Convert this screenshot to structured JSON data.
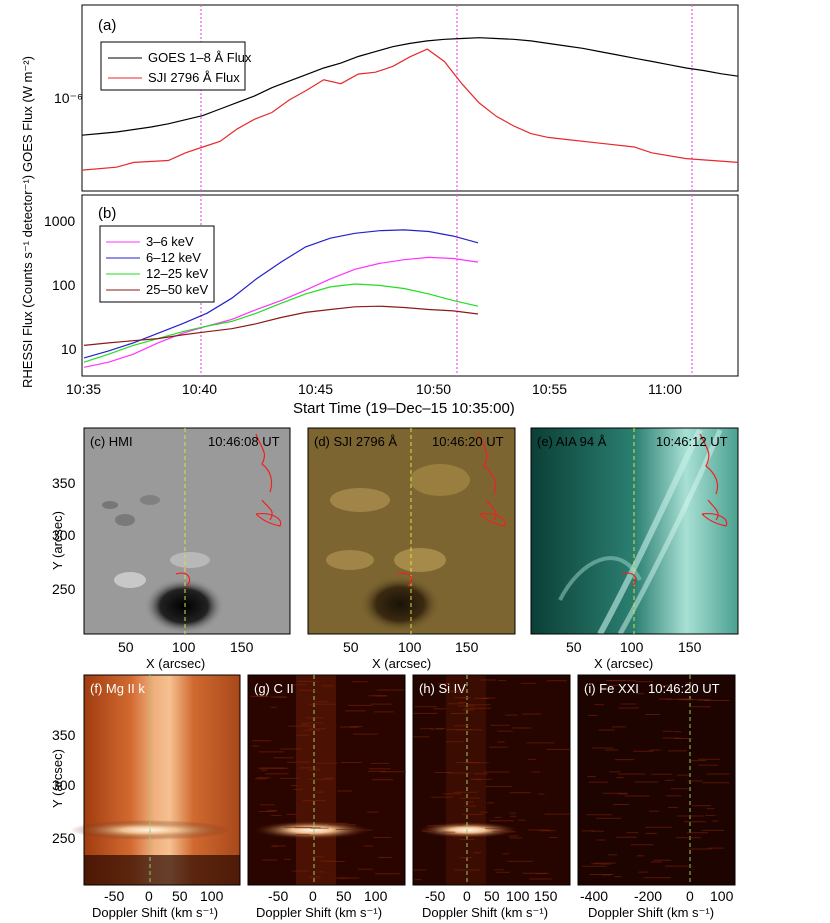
{
  "colors": {
    "goes": "#000000",
    "sji": "#e8282a",
    "ch36": "#ff33ff",
    "ch612": "#2222cc",
    "ch1225": "#22dd22",
    "ch2550": "#8b1a1a",
    "marker": "#ee55ee",
    "contour": "#ee2222"
  },
  "chart_data": [
    {
      "type": "line",
      "panel": "(a)",
      "ylabel": "GOES Flux (W m⁻²)",
      "ytick": "10⁻⁶",
      "yscale": "log",
      "series": [
        {
          "name": "GOES 1–8 Å Flux",
          "x": [
            0,
            1,
            2,
            3,
            4,
            5,
            6,
            7,
            8,
            9,
            10,
            11,
            12,
            13,
            14,
            15,
            16,
            17,
            18,
            19,
            20,
            21,
            22,
            23,
            24,
            25,
            26,
            27,
            28,
            29,
            30,
            31,
            32,
            33,
            34,
            35,
            36,
            37,
            38
          ],
          "y": [
            0.18,
            0.2,
            0.22,
            0.25,
            0.28,
            0.32,
            0.37,
            0.42,
            0.5,
            0.58,
            0.66,
            0.76,
            0.84,
            0.92,
            1.0,
            1.06,
            1.14,
            1.2,
            1.26,
            1.3,
            1.33,
            1.35,
            1.36,
            1.37,
            1.36,
            1.35,
            1.33,
            1.3,
            1.27,
            1.24,
            1.2,
            1.16,
            1.12,
            1.08,
            1.04,
            1.0,
            0.97,
            0.93,
            0.9
          ]
        },
        {
          "name": "SJI 2796 Å Flux",
          "x": [
            0,
            2,
            3,
            5,
            6,
            7,
            8,
            9,
            10,
            11,
            12,
            13,
            14,
            15,
            16,
            17,
            18,
            19,
            20,
            21,
            22,
            23,
            24,
            25,
            26,
            27,
            28,
            30,
            32,
            33,
            35,
            38
          ],
          "y": [
            0.02,
            0.05,
            0.1,
            0.12,
            0.2,
            0.26,
            0.32,
            0.45,
            0.55,
            0.62,
            0.75,
            0.85,
            0.96,
            0.92,
            1.02,
            1.04,
            1.1,
            1.2,
            1.28,
            1.15,
            0.92,
            0.72,
            0.58,
            0.48,
            0.4,
            0.36,
            0.34,
            0.3,
            0.26,
            0.2,
            0.14,
            0.1
          ]
        }
      ]
    },
    {
      "type": "line",
      "panel": "(b)",
      "ylabel": "RHESSI Flux (Counts s⁻¹ detector⁻¹)",
      "yscale": "log",
      "yticks": [
        "10",
        "100",
        "1000"
      ],
      "series": [
        {
          "name": "3–6 keV",
          "x": [
            0,
            1,
            2,
            3,
            4,
            5,
            6,
            7,
            8,
            9,
            10,
            11,
            12,
            13,
            14,
            15,
            16
          ],
          "y": [
            5,
            6,
            8,
            12,
            17,
            22,
            28,
            40,
            55,
            80,
            120,
            170,
            210,
            240,
            260,
            250,
            220
          ]
        },
        {
          "name": "6–12 keV",
          "x": [
            0,
            1,
            2,
            3,
            4,
            5,
            6,
            7,
            8,
            9,
            10,
            11,
            12,
            13,
            14,
            15,
            16
          ],
          "y": [
            7,
            9,
            12,
            17,
            24,
            35,
            60,
            120,
            220,
            380,
            520,
            620,
            680,
            700,
            660,
            560,
            440
          ]
        },
        {
          "name": "12–25 keV",
          "x": [
            0,
            1,
            2,
            3,
            4,
            5,
            6,
            7,
            8,
            9,
            10,
            11,
            12,
            13,
            14,
            15,
            16
          ],
          "y": [
            6,
            8,
            11,
            14,
            18,
            22,
            26,
            35,
            50,
            70,
            90,
            100,
            95,
            85,
            70,
            55,
            45
          ]
        },
        {
          "name": "25–50 keV",
          "x": [
            0,
            1,
            2,
            3,
            4,
            5,
            6,
            7,
            8,
            9,
            10,
            11,
            12,
            13,
            14,
            15,
            16
          ],
          "y": [
            11,
            12,
            13,
            14,
            16,
            18,
            20,
            24,
            30,
            36,
            40,
            44,
            45,
            43,
            40,
            38,
            34
          ]
        }
      ]
    }
  ],
  "time_axis": {
    "ticks": [
      "10:35",
      "10:40",
      "10:45",
      "10:50",
      "10:55",
      "11:00"
    ],
    "label": "Start Time (19–Dec–15 10:35:00)"
  },
  "panels_row2": [
    {
      "id": "c",
      "label": "(c) HMI",
      "time": "10:46:08 UT"
    },
    {
      "id": "d",
      "label": "(d) SJI 2796 Å",
      "time": "10:46:20 UT"
    },
    {
      "id": "e",
      "label": "(e) AIA 94 Å",
      "time": "10:46:12 UT"
    }
  ],
  "row2_axes": {
    "ylabel": "Y (arcsec)",
    "xlabel": "X (arcsec)",
    "xticks": [
      "50",
      "100",
      "150"
    ],
    "yticks": [
      "350",
      "300",
      "250"
    ]
  },
  "panels_row3": [
    {
      "id": "f",
      "label": "(f) Mg II k",
      "xticks": [
        "-50",
        "0",
        "50",
        "100"
      ]
    },
    {
      "id": "g",
      "label": "(g) C II",
      "xticks": [
        "-50",
        "0",
        "50",
        "100"
      ]
    },
    {
      "id": "h",
      "label": "(h) Si IV",
      "xticks": [
        "-50",
        "0",
        "50",
        "100",
        "150"
      ]
    },
    {
      "id": "i",
      "label": "(i) Fe XXI",
      "time": "10:46:20 UT",
      "xticks": [
        "-400",
        "-200",
        "0",
        "100"
      ]
    }
  ],
  "row3_axes": {
    "ylabel": "Y (arcsec)",
    "xlabel": "Doppler Shift (km s⁻¹)",
    "yticks": [
      "350",
      "300",
      "250"
    ]
  }
}
